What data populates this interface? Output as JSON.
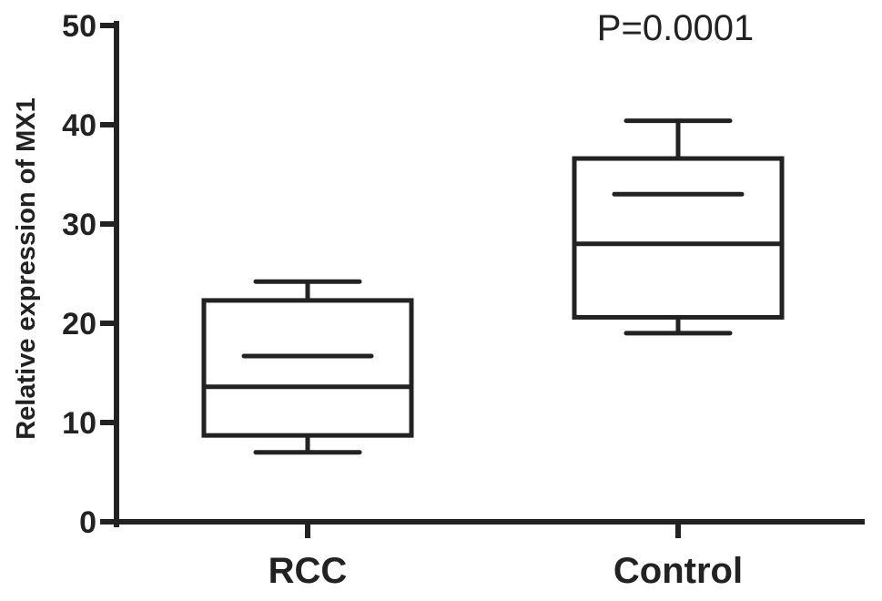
{
  "chart_data": {
    "type": "box",
    "title": "",
    "xlabel": "",
    "ylabel": "Relative expression of MX1",
    "ylim": [
      0,
      50
    ],
    "yticks": [
      0,
      10,
      20,
      30,
      40,
      50
    ],
    "ytick_labels": [
      "0",
      "10",
      "20",
      "30",
      "40",
      "50"
    ],
    "grid": false,
    "annotation": "P=0.0001",
    "categories": [
      "RCC",
      "Control"
    ],
    "boxes": [
      {
        "category": "RCC",
        "whisker_low": 7.0,
        "q1": 8.7,
        "median": 13.6,
        "mean": 16.7,
        "q3": 22.3,
        "whisker_high": 24.2
      },
      {
        "category": "Control",
        "whisker_low": 19.0,
        "q1": 20.6,
        "median": 28.0,
        "mean": 33.0,
        "q3": 36.6,
        "whisker_high": 40.4
      }
    ],
    "colors": {
      "line": "#222222",
      "box_fill": "#ffffff",
      "background": "#ffffff"
    }
  }
}
